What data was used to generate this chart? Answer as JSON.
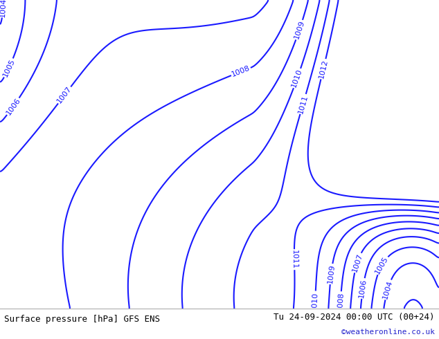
{
  "title_left": "Surface pressure [hPa] GFS ENS",
  "title_right": "Tu 24-09-2024 00:00 UTC (00+24)",
  "credit": "©weatheronline.co.uk",
  "background_sea": "#d8d8d8",
  "background_land": "#c8e8a8",
  "contour_color": "#1a1aff",
  "contour_linewidth": 1.5,
  "border_color": "#888888",
  "text_color_title": "#000000",
  "text_color_credit": "#2222cc",
  "label_fontsize": 8,
  "figsize": [
    6.34,
    4.9
  ],
  "dpi": 100,
  "extent": [
    -12.0,
    10.5,
    47.5,
    62.5
  ]
}
